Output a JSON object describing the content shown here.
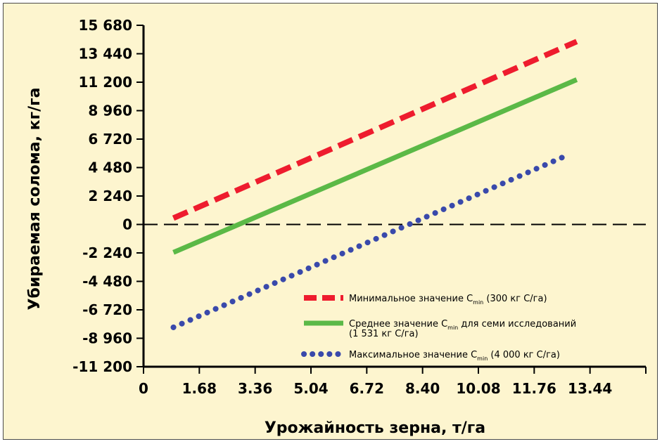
{
  "chart_data": {
    "type": "line",
    "xlabel": "Урожайность зерна, т/га",
    "ylabel": "Убираемая солома, кг/га",
    "xlim": [
      0,
      15.12
    ],
    "ylim": [
      -11200,
      15680
    ],
    "x_ticks": [
      0,
      1.68,
      3.36,
      5.04,
      6.72,
      8.4,
      10.08,
      11.76,
      13.44
    ],
    "x_tick_labels": [
      "0",
      "1.68",
      "3.36",
      "5.04",
      "6.72",
      "8.40",
      "10.08",
      "11.76",
      "13.44"
    ],
    "y_ticks": [
      15680,
      13440,
      11200,
      8960,
      6720,
      4480,
      2240,
      0,
      -2240,
      -4480,
      -6720,
      -8960,
      -11200
    ],
    "y_tick_labels": [
      "15 680",
      "13 440",
      "11 200",
      "8 960",
      "6 720",
      "4 480",
      "2 240",
      "0",
      "-2 240",
      "-4 480",
      "-6 720",
      "-8 960",
      "-11 200"
    ],
    "reference_line": {
      "y": 0,
      "style": "dashed",
      "color": "#000000"
    },
    "grid": false,
    "legend_position": "bottom-right",
    "series": [
      {
        "legend": {
          "prefix": "Минимальное значение C",
          "sub": "min",
          "suffix": " (300 кг C/га)",
          "line2": ""
        },
        "style": "dashed",
        "color": "#ee1c2e",
        "width": 8,
        "x": [
          0.9,
          13.04
        ],
        "y": [
          500,
          14400
        ]
      },
      {
        "legend": {
          "prefix": "Среднее значение C",
          "sub": "min",
          "suffix": " для семи исследований",
          "line2": "(1 531 кг C/га)"
        },
        "style": "solid",
        "color": "#5bb947",
        "width": 7,
        "x": [
          0.9,
          13.04
        ],
        "y": [
          -2200,
          11400
        ]
      },
      {
        "legend": {
          "prefix": "Максимальное значение C",
          "sub": "min",
          "suffix": " (4 000 кг C/га)",
          "line2": ""
        },
        "style": "dotted",
        "color": "#3949ab",
        "width": 8,
        "x": [
          0.9,
          12.8
        ],
        "y": [
          -8100,
          5500
        ]
      }
    ]
  }
}
